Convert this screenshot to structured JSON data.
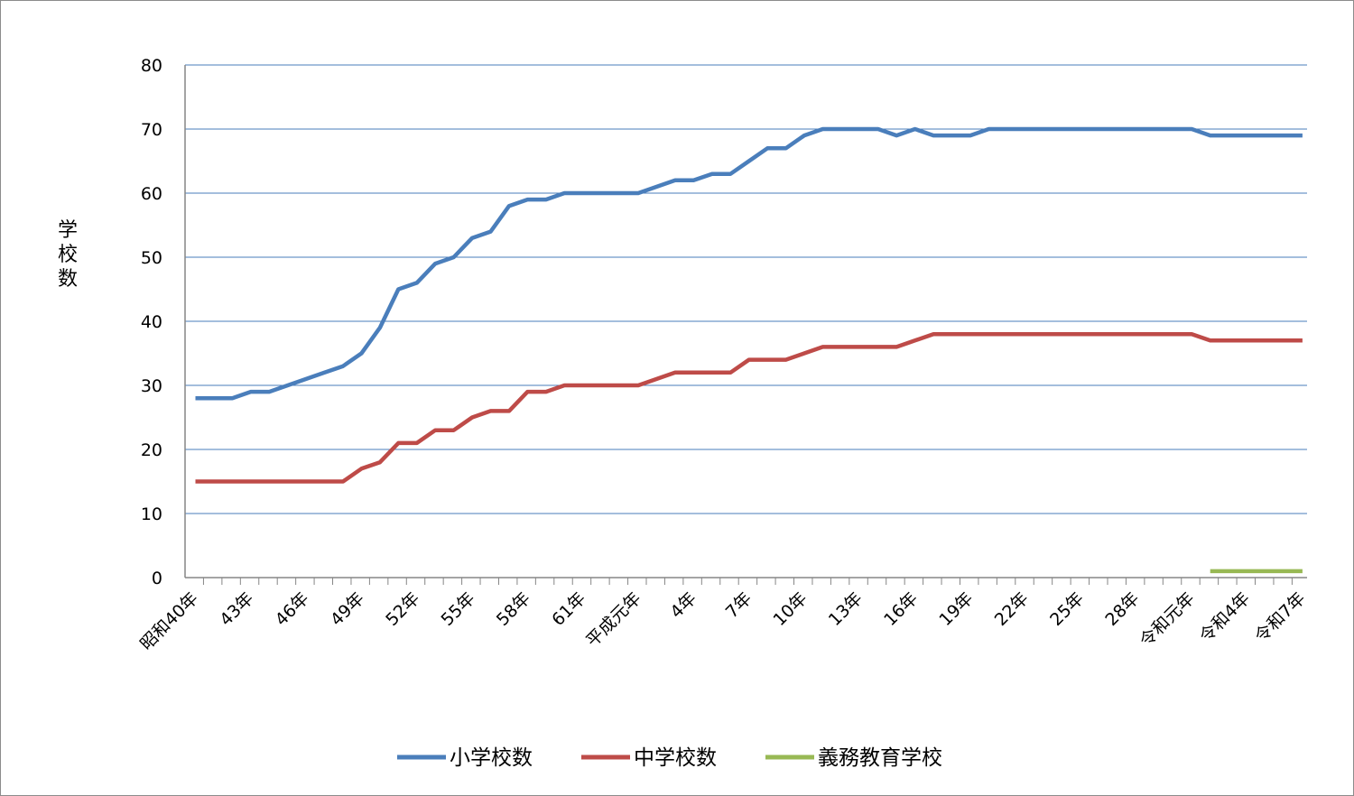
{
  "chart_data": {
    "type": "line",
    "ylabel": "学校数",
    "ylim": [
      0,
      80
    ],
    "yticks": [
      0,
      10,
      20,
      30,
      40,
      50,
      60,
      70,
      80
    ],
    "grid": true,
    "legend_position": "bottom",
    "x_labels": [
      {
        "index": 0,
        "label": "昭和40年"
      },
      {
        "index": 3,
        "label": "43年"
      },
      {
        "index": 6,
        "label": "46年"
      },
      {
        "index": 9,
        "label": "49年"
      },
      {
        "index": 12,
        "label": "52年"
      },
      {
        "index": 15,
        "label": "55年"
      },
      {
        "index": 18,
        "label": "58年"
      },
      {
        "index": 21,
        "label": "61年"
      },
      {
        "index": 24,
        "label": "平成元年"
      },
      {
        "index": 27,
        "label": "4年"
      },
      {
        "index": 30,
        "label": "7年"
      },
      {
        "index": 33,
        "label": "10年"
      },
      {
        "index": 36,
        "label": "13年"
      },
      {
        "index": 39,
        "label": "16年"
      },
      {
        "index": 42,
        "label": "19年"
      },
      {
        "index": 45,
        "label": "22年"
      },
      {
        "index": 48,
        "label": "25年"
      },
      {
        "index": 51,
        "label": "28年"
      },
      {
        "index": 54,
        "label": "令和元年"
      },
      {
        "index": 57,
        "label": "令和4年"
      },
      {
        "index": 60,
        "label": "令和7年"
      }
    ],
    "series": [
      {
        "name": "小学校数",
        "color": "#4a7ebb",
        "values": [
          28,
          28,
          28,
          29,
          29,
          30,
          31,
          32,
          33,
          35,
          39,
          45,
          46,
          49,
          50,
          53,
          54,
          58,
          59,
          59,
          60,
          60,
          60,
          60,
          60,
          61,
          62,
          62,
          63,
          63,
          65,
          67,
          67,
          69,
          70,
          70,
          70,
          70,
          69,
          70,
          69,
          69,
          69,
          70,
          70,
          70,
          70,
          70,
          70,
          70,
          70,
          70,
          70,
          70,
          70,
          69,
          69,
          69,
          69,
          69,
          69
        ]
      },
      {
        "name": "中学校数",
        "color": "#be4b48",
        "values": [
          15,
          15,
          15,
          15,
          15,
          15,
          15,
          15,
          15,
          17,
          18,
          21,
          21,
          23,
          23,
          25,
          26,
          26,
          29,
          29,
          30,
          30,
          30,
          30,
          30,
          31,
          32,
          32,
          32,
          32,
          34,
          34,
          34,
          35,
          36,
          36,
          36,
          36,
          36,
          37,
          38,
          38,
          38,
          38,
          38,
          38,
          38,
          38,
          38,
          38,
          38,
          38,
          38,
          38,
          38,
          37,
          37,
          37,
          37,
          37,
          37
        ]
      },
      {
        "name": "義務教育学校",
        "color": "#98b954",
        "values": [
          null,
          null,
          null,
          null,
          null,
          null,
          null,
          null,
          null,
          null,
          null,
          null,
          null,
          null,
          null,
          null,
          null,
          null,
          null,
          null,
          null,
          null,
          null,
          null,
          null,
          null,
          null,
          null,
          null,
          null,
          null,
          null,
          null,
          null,
          null,
          null,
          null,
          null,
          null,
          null,
          null,
          null,
          null,
          null,
          null,
          null,
          null,
          null,
          null,
          null,
          null,
          null,
          null,
          null,
          null,
          1,
          1,
          1,
          1,
          1,
          1
        ]
      }
    ]
  }
}
